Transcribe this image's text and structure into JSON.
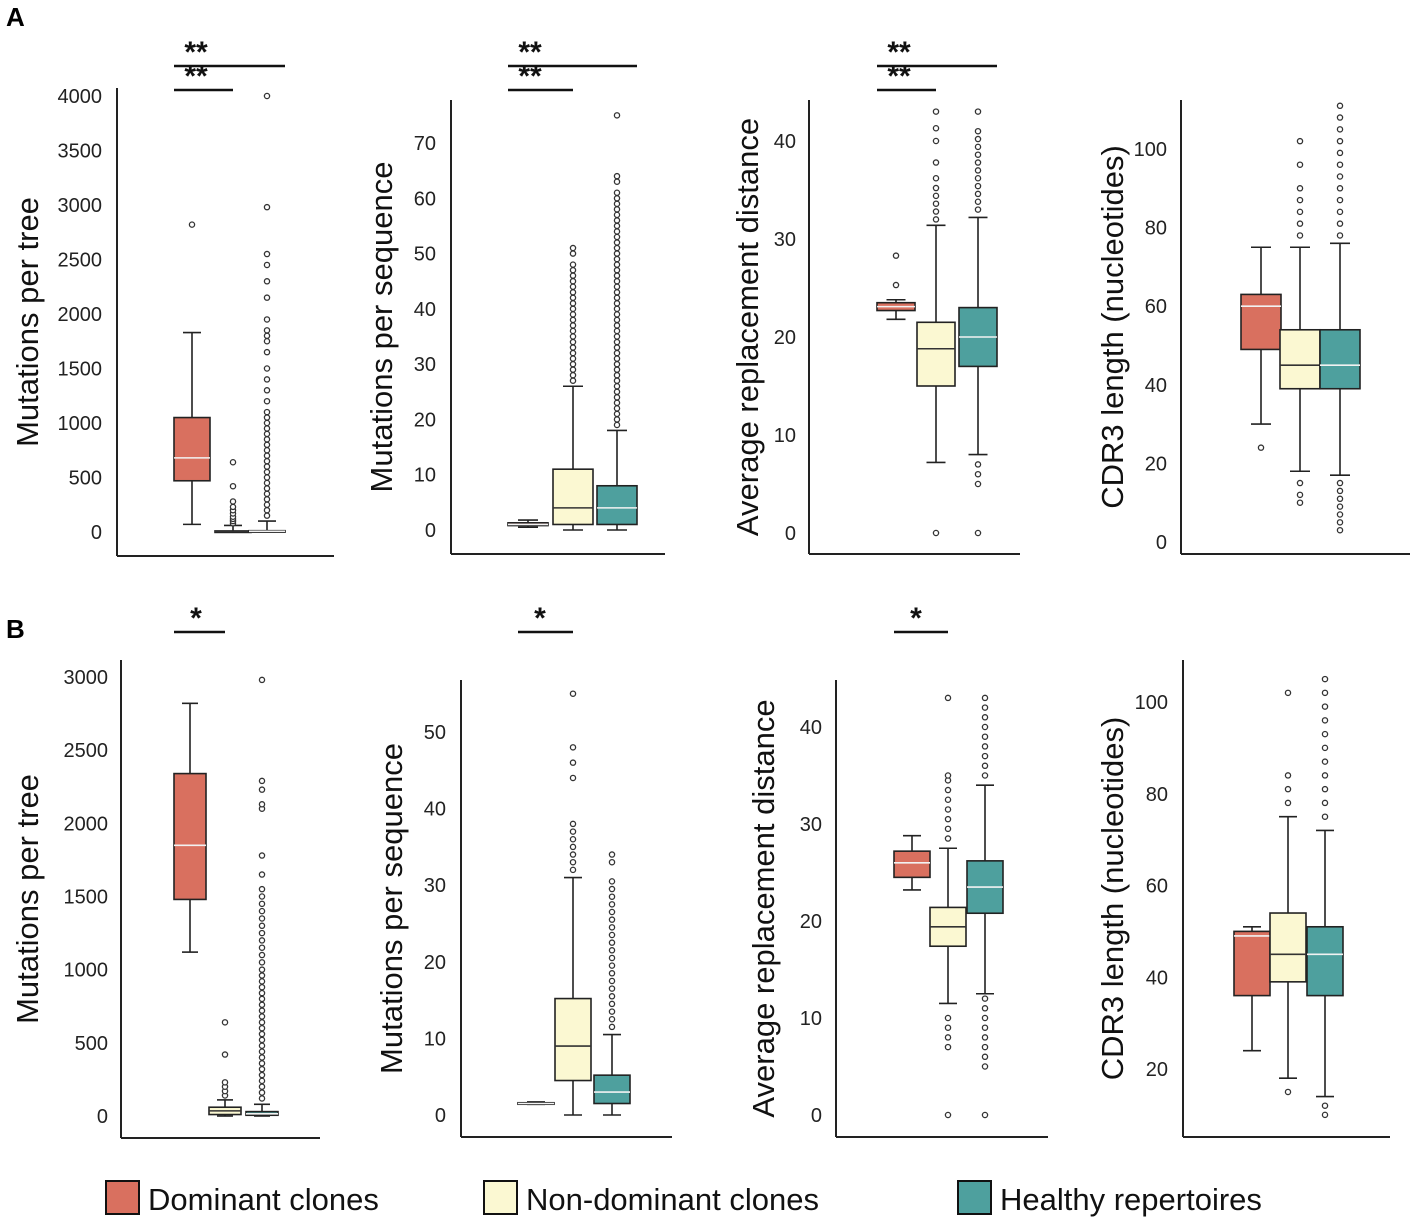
{
  "panel_labels": [
    "A",
    "B"
  ],
  "legend": [
    {
      "label": "Dominant clones",
      "color": "#d9705f"
    },
    {
      "label": "Non-dominant clones",
      "color": "#fbf8d2"
    },
    {
      "label": "Healthy repertoires",
      "color": "#4ea09e"
    }
  ],
  "colors": {
    "dominant": "#d9705f",
    "nondominant": "#fbf8d2",
    "healthy": "#4ea09e",
    "axis": "#222222"
  },
  "chart_data": [
    {
      "id": "A1",
      "panel": "A",
      "type": "boxplot",
      "ylabel": "Mutations per tree",
      "ylim": [
        0,
        4000
      ],
      "yticks": [
        0,
        500,
        1000,
        1500,
        2000,
        2500,
        3000,
        3500,
        4000
      ],
      "categories": [
        "Dominant clones",
        "Non-dominant clones",
        "Healthy repertoires"
      ],
      "boxes": [
        {
          "group": "dominant",
          "whisker_low": 70,
          "q1": 470,
          "median": 680,
          "q3": 1050,
          "whisker_high": 1830,
          "outliers": [
            2820
          ]
        },
        {
          "group": "nondominant",
          "whisker_low": 0,
          "q1": 2,
          "median": 5,
          "q3": 10,
          "whisker_high": 60,
          "outliers": [
            80,
            100,
            120,
            140,
            170,
            200,
            230,
            280,
            420,
            640
          ]
        },
        {
          "group": "healthy",
          "whisker_low": 0,
          "q1": 2,
          "median": 6,
          "q3": 12,
          "whisker_high": 100,
          "outliers": [
            150,
            200,
            250,
            300,
            350,
            400,
            450,
            500,
            550,
            600,
            650,
            700,
            750,
            800,
            850,
            900,
            950,
            1000,
            1050,
            1100,
            1200,
            1300,
            1400,
            1500,
            1650,
            1750,
            1800,
            1850,
            1950,
            2150,
            2300,
            2450,
            2550,
            2980,
            4000
          ]
        }
      ],
      "significance": [
        {
          "from": 0,
          "to": 1,
          "label": "**"
        },
        {
          "from": 0,
          "to": 2,
          "label": "**"
        }
      ]
    },
    {
      "id": "A2",
      "panel": "A",
      "type": "boxplot",
      "ylabel": "Mutations per sequence",
      "ylim": [
        0,
        75
      ],
      "yticks": [
        0,
        10,
        20,
        30,
        40,
        50,
        60,
        70
      ],
      "categories": [
        "Dominant clones",
        "Non-dominant clones",
        "Healthy repertoires"
      ],
      "boxes": [
        {
          "group": "dominant",
          "whisker_low": 0.5,
          "q1": 0.8,
          "median": 1.0,
          "q3": 1.3,
          "whisker_high": 1.8,
          "outliers": []
        },
        {
          "group": "nondominant",
          "whisker_low": 0,
          "q1": 1,
          "median": 4,
          "q3": 11,
          "whisker_high": 26,
          "outliers": [
            27,
            28,
            29,
            30,
            31,
            32,
            33,
            34,
            35,
            36,
            37,
            38,
            39,
            40,
            41,
            42,
            43,
            44,
            45,
            46,
            47,
            48,
            50,
            51
          ]
        },
        {
          "group": "healthy",
          "whisker_low": 0,
          "q1": 1,
          "median": 4,
          "q3": 8,
          "whisker_high": 18,
          "outliers": [
            19,
            20,
            21,
            22,
            23,
            24,
            25,
            26,
            27,
            28,
            29,
            30,
            31,
            32,
            33,
            34,
            35,
            36,
            37,
            38,
            39,
            40,
            41,
            42,
            43,
            44,
            45,
            46,
            47,
            48,
            49,
            50,
            51,
            52,
            53,
            54,
            55,
            56,
            57,
            58,
            59,
            60,
            61,
            63,
            64,
            75
          ]
        }
      ],
      "significance": [
        {
          "from": 0,
          "to": 1,
          "label": "**"
        },
        {
          "from": 0,
          "to": 2,
          "label": "**"
        }
      ]
    },
    {
      "id": "A3",
      "panel": "A",
      "type": "boxplot",
      "ylabel": "Average replacement distance",
      "ylim": [
        0,
        43
      ],
      "yticks": [
        0,
        10,
        20,
        30,
        40
      ],
      "categories": [
        "Dominant clones",
        "Non-dominant clones",
        "Healthy repertoires"
      ],
      "boxes": [
        {
          "group": "dominant",
          "whisker_low": 21.8,
          "q1": 22.7,
          "median": 23.1,
          "q3": 23.5,
          "whisker_high": 23.8,
          "outliers": [
            25.3,
            28.3
          ]
        },
        {
          "group": "nondominant",
          "whisker_low": 7.2,
          "q1": 15,
          "median": 18.8,
          "q3": 21.5,
          "whisker_high": 31.4,
          "outliers": [
            0,
            32,
            32.8,
            33.6,
            34.4,
            35.2,
            36.2,
            37.8,
            40,
            41.3,
            43
          ]
        },
        {
          "group": "healthy",
          "whisker_low": 8,
          "q1": 17,
          "median": 20,
          "q3": 23,
          "whisker_high": 32.2,
          "outliers": [
            0,
            5,
            6,
            7,
            33,
            33.8,
            34.6,
            35.4,
            36.2,
            37,
            37.8,
            38.6,
            39.4,
            40.2,
            41,
            43
          ]
        }
      ],
      "significance": [
        {
          "from": 0,
          "to": 1,
          "label": "**"
        },
        {
          "from": 0,
          "to": 2,
          "label": "**"
        }
      ]
    },
    {
      "id": "A4",
      "panel": "A",
      "type": "boxplot",
      "ylabel": "CDR3 length (nucleotides)",
      "ylim": [
        0,
        110
      ],
      "yticks": [
        0,
        20,
        40,
        60,
        80,
        100
      ],
      "categories": [
        "Dominant clones",
        "Non-dominant clones",
        "Healthy repertoires"
      ],
      "boxes": [
        {
          "group": "dominant",
          "whisker_low": 30,
          "q1": 49,
          "median": 60,
          "q3": 63,
          "whisker_high": 75,
          "outliers": [
            24
          ]
        },
        {
          "group": "nondominant",
          "whisker_low": 18,
          "q1": 39,
          "median": 45,
          "q3": 54,
          "whisker_high": 75,
          "outliers": [
            10,
            12,
            15,
            78,
            81,
            84,
            87,
            90,
            96,
            102
          ]
        },
        {
          "group": "healthy",
          "whisker_low": 17,
          "q1": 39,
          "median": 45,
          "q3": 54,
          "whisker_high": 76,
          "outliers": [
            3,
            5,
            7,
            9,
            11,
            13,
            15,
            78,
            81,
            84,
            87,
            90,
            93,
            96,
            99,
            102,
            105,
            108,
            111
          ]
        }
      ],
      "significance": []
    },
    {
      "id": "B1",
      "panel": "B",
      "type": "boxplot",
      "ylabel": "Mutations per tree",
      "ylim": [
        0,
        3000
      ],
      "yticks": [
        0,
        500,
        1000,
        1500,
        2000,
        2500,
        3000
      ],
      "categories": [
        "Dominant clones",
        "Non-dominant clones",
        "Healthy repertoires"
      ],
      "boxes": [
        {
          "group": "dominant",
          "whisker_low": 1120,
          "q1": 1480,
          "median": 1850,
          "q3": 2340,
          "whisker_high": 2820,
          "outliers": []
        },
        {
          "group": "nondominant",
          "whisker_low": 0,
          "q1": 10,
          "median": 35,
          "q3": 60,
          "whisker_high": 110,
          "outliers": [
            140,
            170,
            200,
            230,
            420,
            640
          ]
        },
        {
          "group": "healthy",
          "whisker_low": 0,
          "q1": 5,
          "median": 15,
          "q3": 30,
          "whisker_high": 80,
          "outliers": [
            120,
            160,
            200,
            240,
            280,
            320,
            360,
            400,
            440,
            480,
            520,
            560,
            600,
            640,
            680,
            720,
            760,
            800,
            840,
            880,
            920,
            960,
            1000,
            1050,
            1100,
            1150,
            1200,
            1250,
            1300,
            1350,
            1400,
            1450,
            1500,
            1550,
            1650,
            1780,
            2100,
            2130,
            2230,
            2290,
            2980
          ]
        }
      ],
      "significance": [
        {
          "from": 0,
          "to": 1,
          "label": "*"
        }
      ]
    },
    {
      "id": "B2",
      "panel": "B",
      "type": "boxplot",
      "ylabel": "Mutations per sequence",
      "ylim": [
        0,
        55
      ],
      "yticks": [
        0,
        10,
        20,
        30,
        40,
        50
      ],
      "categories": [
        "Dominant clones",
        "Non-dominant clones",
        "Healthy repertoires"
      ],
      "boxes": [
        {
          "group": "dominant",
          "whisker_low": 1.4,
          "q1": 1.5,
          "median": 1.5,
          "q3": 1.6,
          "whisker_high": 1.7,
          "outliers": []
        },
        {
          "group": "nondominant",
          "whisker_low": 0,
          "q1": 4.5,
          "median": 9,
          "q3": 15.2,
          "whisker_high": 31,
          "outliers": [
            32,
            33,
            34,
            35,
            36,
            37,
            38,
            44,
            46,
            48,
            55
          ]
        },
        {
          "group": "healthy",
          "whisker_low": 0,
          "q1": 1.5,
          "median": 3,
          "q3": 5.2,
          "whisker_high": 10.5,
          "outliers": [
            11.5,
            12.5,
            13.5,
            14.5,
            15.5,
            16.5,
            17.5,
            18.5,
            19.5,
            20.5,
            21.5,
            22.5,
            23.5,
            24.5,
            25.5,
            26.5,
            27.5,
            28.5,
            29.5,
            30.5,
            33,
            34
          ]
        }
      ],
      "significance": [
        {
          "from": 0,
          "to": 1,
          "label": "*"
        }
      ]
    },
    {
      "id": "B3",
      "panel": "B",
      "type": "boxplot",
      "ylabel": "Average replacement distance",
      "ylim": [
        0,
        43
      ],
      "yticks": [
        0,
        10,
        20,
        30,
        40
      ],
      "categories": [
        "Dominant clones",
        "Non-dominant clones",
        "Healthy repertoires"
      ],
      "boxes": [
        {
          "group": "dominant",
          "whisker_low": 23.2,
          "q1": 24.5,
          "median": 26,
          "q3": 27.2,
          "whisker_high": 28.8,
          "outliers": []
        },
        {
          "group": "nondominant",
          "whisker_low": 11.5,
          "q1": 17.4,
          "median": 19.4,
          "q3": 21.4,
          "whisker_high": 27.5,
          "outliers": [
            0,
            7,
            8,
            9,
            10,
            28.5,
            29.5,
            30.5,
            31.5,
            32.5,
            33.5,
            34.5,
            35,
            43
          ]
        },
        {
          "group": "healthy",
          "whisker_low": 12.5,
          "q1": 20.8,
          "median": 23.5,
          "q3": 26.2,
          "whisker_high": 34,
          "outliers": [
            0,
            5,
            6,
            7,
            8,
            9,
            10,
            11,
            12,
            35,
            36,
            37,
            38,
            39,
            40,
            41,
            42,
            43
          ]
        }
      ],
      "significance": [
        {
          "from": 0,
          "to": 1,
          "label": "*"
        }
      ]
    },
    {
      "id": "B4",
      "panel": "B",
      "type": "boxplot",
      "ylabel": "CDR3 length (nucleotides)",
      "ylim": [
        10,
        110
      ],
      "yticks": [
        20,
        40,
        60,
        80,
        100
      ],
      "categories": [
        "Dominant clones",
        "Non-dominant clones",
        "Healthy repertoires"
      ],
      "boxes": [
        {
          "group": "dominant",
          "whisker_low": 24,
          "q1": 36,
          "median": 49,
          "q3": 50,
          "whisker_high": 51,
          "outliers": []
        },
        {
          "group": "nondominant",
          "whisker_low": 18,
          "q1": 39,
          "median": 45,
          "q3": 54,
          "whisker_high": 75,
          "outliers": [
            15,
            78,
            81,
            84,
            102
          ]
        },
        {
          "group": "healthy",
          "whisker_low": 14,
          "q1": 36,
          "median": 45,
          "q3": 51,
          "whisker_high": 72,
          "outliers": [
            10,
            12,
            75,
            78,
            81,
            84,
            87,
            90,
            93,
            96,
            99,
            102,
            105
          ]
        }
      ],
      "significance": []
    }
  ]
}
